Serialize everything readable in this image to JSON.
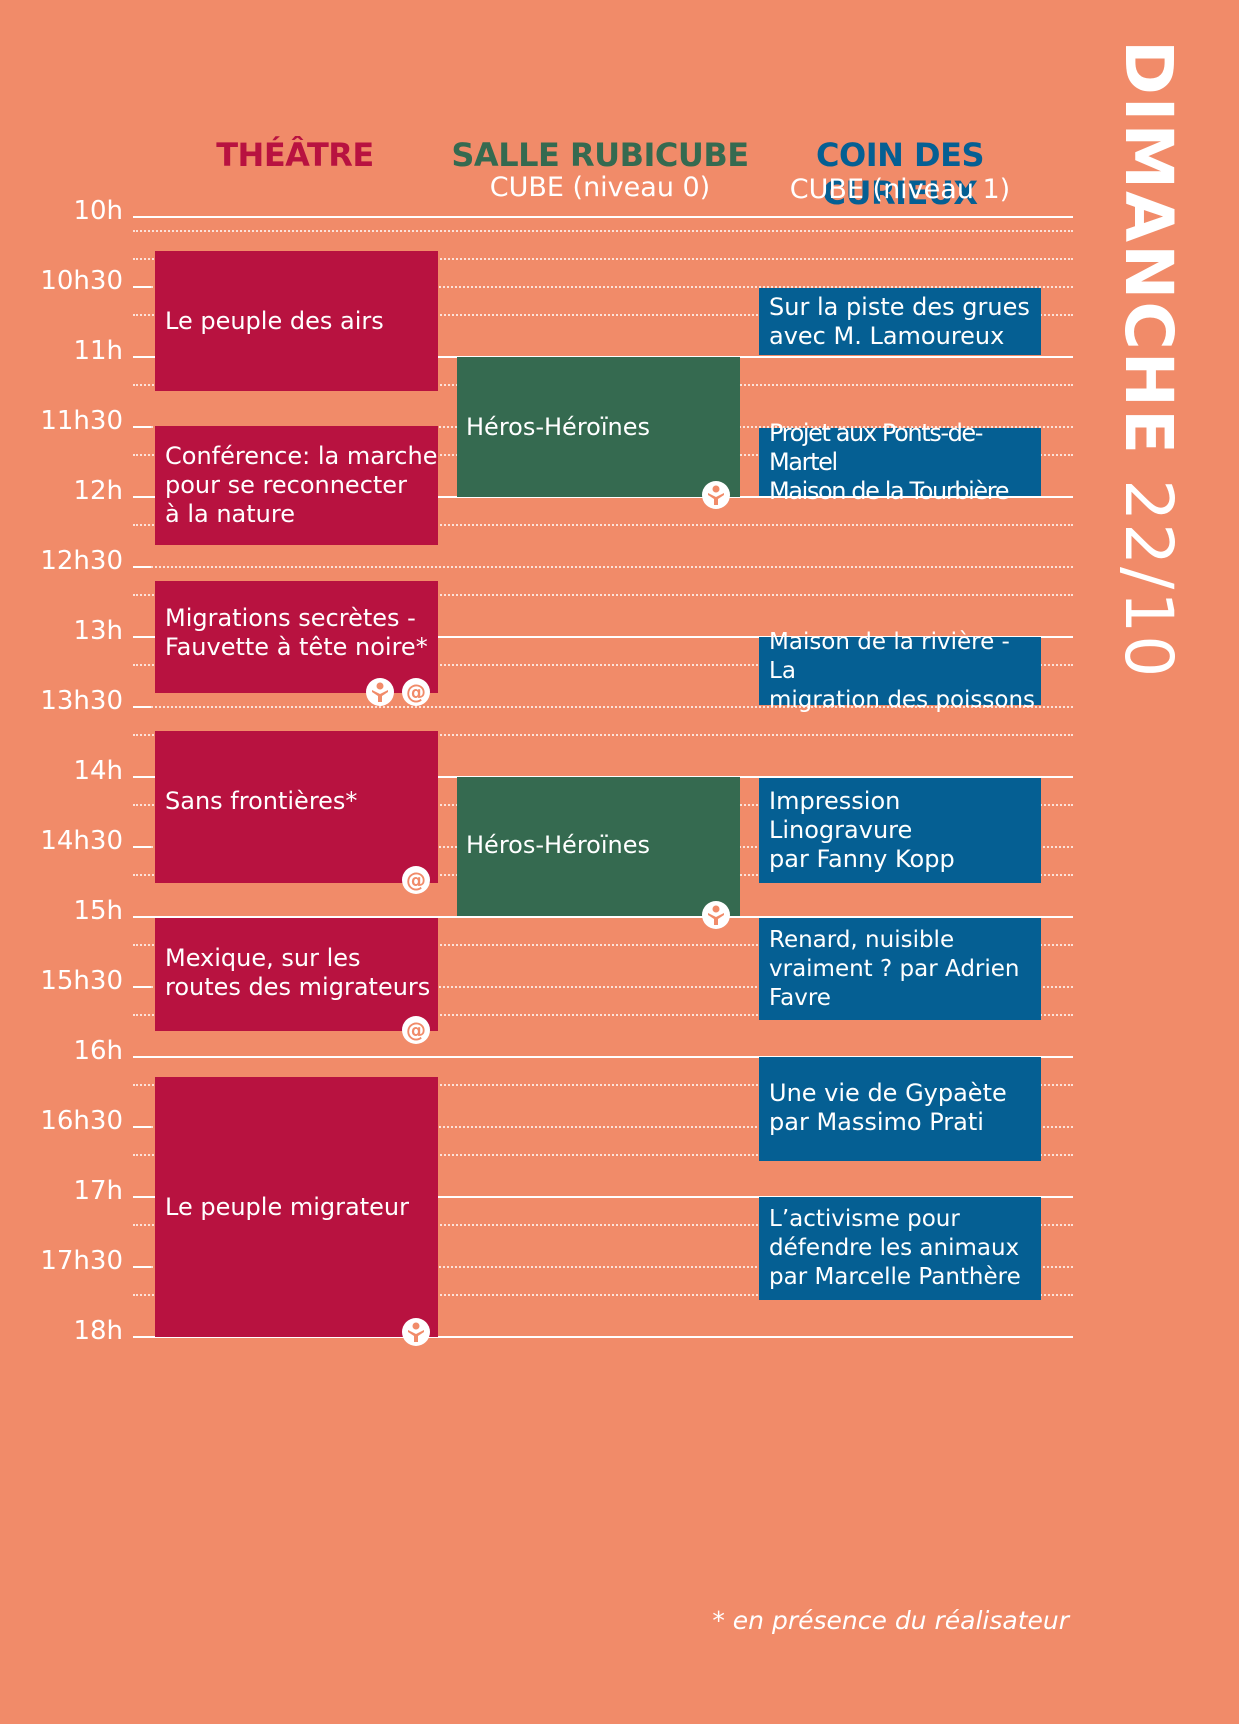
{
  "day": {
    "name": "DIMANCHE",
    "date": "22/10"
  },
  "columns": [
    {
      "title": "THÉÂTRE",
      "subtitle": "",
      "color": "#b81240"
    },
    {
      "title": "SALLE RUBICUBE",
      "subtitle": "CUBE (niveau 0)",
      "color": "#356a50"
    },
    {
      "title": "COIN DES CURIEUX",
      "subtitle": "CUBE (niveau 1)",
      "color": "#055f93"
    }
  ],
  "times": [
    "10h",
    "10h30",
    "11h",
    "11h30",
    "12h",
    "12h30",
    "13h",
    "13h30",
    "14h",
    "14h30",
    "15h",
    "15h30",
    "16h",
    "16h30",
    "17h",
    "17h30",
    "18h"
  ],
  "events": {
    "theatre": [
      {
        "title": "Le peuple des airs",
        "icons": []
      },
      {
        "title": "Conférence: la marche\npour se reconnecter\nà la nature",
        "icons": []
      },
      {
        "title": "Migrations secrètes -\nFauvette à tête noire*",
        "icons": [
          "person",
          "at"
        ]
      },
      {
        "title": "Sans frontières*",
        "icons": [
          "at"
        ]
      },
      {
        "title": "Mexique, sur les\nroutes des migrateurs",
        "icons": [
          "at"
        ]
      },
      {
        "title": "Le peuple migrateur",
        "icons": [
          "person"
        ]
      }
    ],
    "rubicube": [
      {
        "title": "Héros-Héroïnes",
        "icons": [
          "person"
        ]
      },
      {
        "title": "Héros-Héroïnes",
        "icons": [
          "person"
        ]
      }
    ],
    "curieux": [
      {
        "title": "Sur la piste des grues\navec M. Lamoureux"
      },
      {
        "title": "Projet aux Ponts-de-Martel\nMaison de la Tourbière"
      },
      {
        "title": "Maison de la rivière - La\nmigration des poissons"
      },
      {
        "title": "Impression\nLinogravure\npar Fanny Kopp"
      },
      {
        "title": "Renard, nuisible\nvraiment ?  par Adrien\nFavre"
      },
      {
        "title": "Une vie de Gypaète\npar Massimo Prati"
      },
      {
        "title": "L’activisme pour\ndéfendre les animaux\npar Marcelle Panthère"
      }
    ]
  },
  "footnote": "* en présence du réalisateur",
  "colors": {
    "background": "#f18b69",
    "theatre": "#b81240",
    "rubicube": "#356a50",
    "curieux": "#055f93",
    "text": "#ffffff"
  }
}
